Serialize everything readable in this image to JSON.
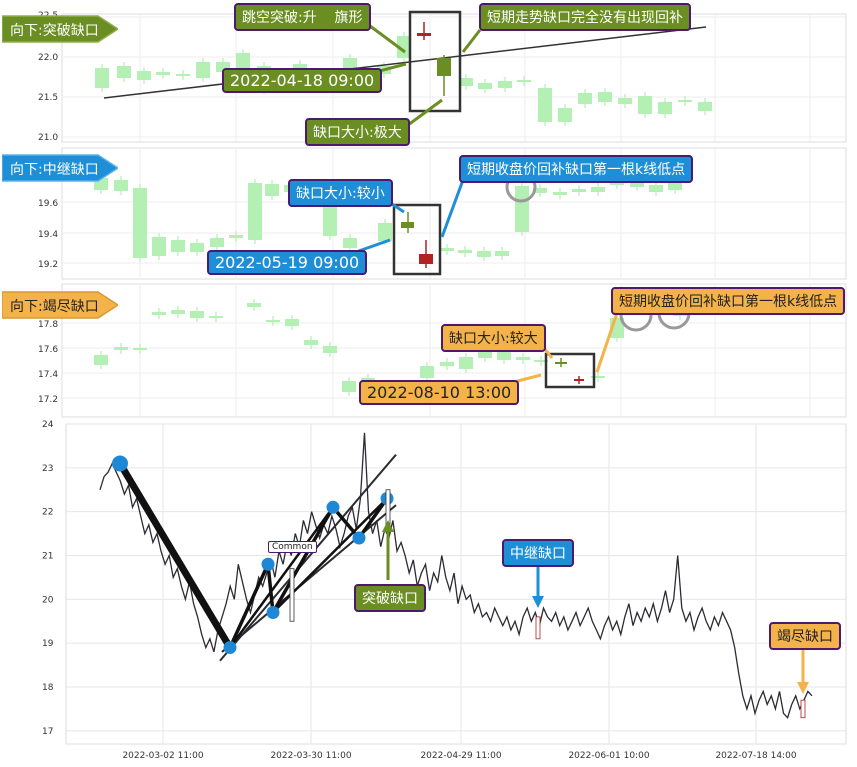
{
  "colors": {
    "up": "#ffb6c1",
    "down": "#b4f0b4",
    "price_line": "#2b2b33",
    "pattern_line": "#2b2b33",
    "pivot": "#1e88d6",
    "green_box": "#6b8e23",
    "blue_box": "#1e8fd6",
    "orange_box": "#f4b24a",
    "gap_up": "#b22222",
    "gap_down": "#6b8e23"
  },
  "panels": {
    "breakaway": {
      "tag": "向下:突破缺口",
      "ann_pattern": "跳空突破:升    旗形",
      "ann_nofill": "短期走势缺口完全没有出现回补",
      "ann_date": "2022-04-18 09:00",
      "ann_size": "缺口大小:极大",
      "yticks": [
        "22.5",
        "22.0",
        "21.5",
        "21.0"
      ]
    },
    "runaway": {
      "tag": "向下:中继缺口",
      "ann_size": "缺口大小:较小",
      "ann_fill": "短期收盘价回补缺口第一根k线低点",
      "ann_date": "2022-05-19 09:00",
      "yticks": [
        "19.6",
        "19.4",
        "19.2"
      ]
    },
    "exhaustion": {
      "tag": "向下:竭尽缺口",
      "ann_fill": "短期收盘价回补缺口第一根k线低点",
      "ann_size": "缺口大小:较大",
      "ann_date": "2022-08-10 13:00",
      "yticks": [
        "17.8",
        "17.6",
        "17.4",
        "17.2"
      ]
    }
  },
  "chart_data": {
    "type": "line",
    "ylim": [
      16.7,
      24
    ],
    "yticks": [
      "24",
      "23",
      "22",
      "21",
      "20",
      "19",
      "18",
      "17"
    ],
    "xticks": [
      "2022-03-02 11:00",
      "2022-03-30 11:00",
      "2022-04-29 11:00",
      "2022-06-01 10:00",
      "2022-07-18 14:00"
    ],
    "series": [
      {
        "values": [
          22.5,
          22.8,
          22.9,
          23.1,
          22.9,
          22.7,
          22.4,
          22.6,
          22.1,
          22.3,
          21.9,
          21.5,
          21.7,
          21.3,
          21.5,
          21.1,
          20.8,
          21.0,
          20.5,
          20.7,
          20.3,
          20.0,
          20.4,
          19.9,
          19.6,
          19.2,
          18.9,
          19.1,
          18.8,
          19.3,
          19.6,
          19.9,
          20.3,
          20.0,
          20.8,
          20.4,
          20.0,
          19.7,
          20.1,
          20.5,
          20.3,
          20.6,
          20.9,
          20.5,
          21.1,
          20.8,
          21.3,
          21.0,
          21.5,
          21.2,
          21.8,
          21.5,
          22.0,
          21.7,
          21.4,
          21.7,
          21.5,
          21.9,
          21.6,
          21.2,
          21.5,
          21.9,
          22.1,
          21.6,
          22.3,
          23.8,
          22.0,
          21.5,
          21.8,
          21.2,
          21.6,
          21.4,
          21.8,
          21.1,
          21.3,
          21.0,
          20.6,
          20.9,
          20.3,
          20.6,
          20.8,
          20.2,
          20.6,
          20.4,
          21.0,
          20.5,
          20.2,
          20.6,
          19.9,
          20.3,
          20.0,
          20.1,
          19.7,
          19.9,
          19.6,
          19.7,
          19.5,
          19.8,
          19.6,
          19.4,
          19.6,
          19.3,
          19.5,
          19.2,
          19.6,
          19.8,
          19.5,
          19.7,
          19.4,
          19.8,
          19.6,
          19.5,
          19.7,
          19.4,
          19.6,
          19.3,
          19.5,
          19.7,
          19.4,
          19.6,
          19.8,
          19.5,
          19.3,
          19.1,
          19.4,
          19.6,
          19.3,
          19.5,
          19.2,
          19.6,
          19.9,
          19.4,
          19.7,
          19.5,
          19.8,
          19.6,
          19.9,
          19.5,
          19.8,
          20.2,
          19.7,
          20.0,
          21.0,
          19.8,
          19.5,
          19.7,
          19.3,
          19.6,
          19.8,
          19.5,
          19.3,
          19.6,
          19.4,
          19.7,
          19.5,
          19.3,
          18.9,
          18.3,
          17.8,
          17.5,
          17.8,
          17.4,
          17.7,
          17.9,
          17.6,
          17.8,
          17.5,
          17.9,
          17.4,
          17.3,
          17.6,
          17.8,
          17.5,
          17.7,
          17.9,
          17.8
        ]
      }
    ],
    "pivot_values": [
      23.1,
      18.9,
      20.8,
      19.7,
      22.1,
      21.4,
      22.3
    ],
    "annotations": [
      "Common",
      "突破缺口",
      "中继缺口",
      "竭尽缺口"
    ]
  }
}
